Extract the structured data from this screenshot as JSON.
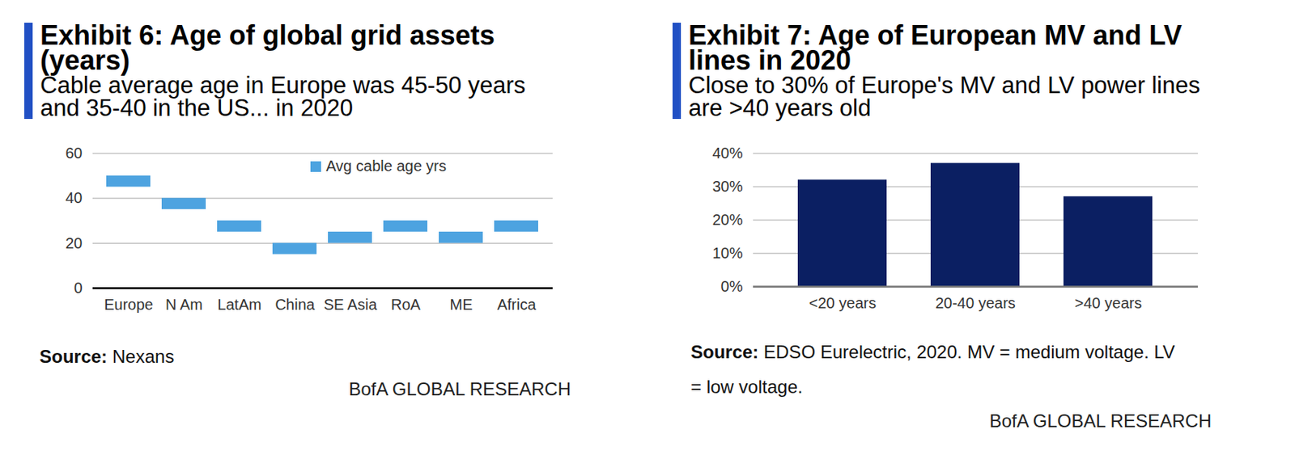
{
  "chart_data": [
    {
      "type": "range_bar",
      "title": "Exhibit 6: Age of global grid assets (years)",
      "subtitle": "Cable average age in Europe was 45-50 years and 35-40 in the US... in 2020",
      "categories": [
        "Europe",
        "N Am",
        "LatAm",
        "China",
        "SE Asia",
        "RoA",
        "ME",
        "Africa"
      ],
      "series": [
        {
          "name": "Avg cable age yrs",
          "color": "#4da3e0",
          "values": [
            [
              45,
              50
            ],
            [
              35,
              40
            ],
            [
              25,
              30
            ],
            [
              15,
              20
            ],
            [
              20,
              25
            ],
            [
              25,
              30
            ],
            [
              20,
              25
            ],
            [
              25,
              30
            ]
          ]
        }
      ],
      "ylim": [
        0,
        60
      ],
      "yticks": [
        0,
        20,
        40,
        60
      ],
      "grid": true,
      "legend": "top-right",
      "source_label": "Source:",
      "source": "Nexans",
      "credit": "BofA GLOBAL RESEARCH"
    },
    {
      "type": "bar",
      "title": "Exhibit 7: Age of European MV and LV lines in 2020",
      "subtitle": "Close to 30% of Europe's MV and LV power lines are >40 years old",
      "categories": [
        "<20 years",
        "20-40 years",
        ">40 years"
      ],
      "values": [
        32,
        37,
        27
      ],
      "color": "#0b1f62",
      "ylim": [
        0,
        40
      ],
      "yticks": [
        {
          "value": 0,
          "label": "0%"
        },
        {
          "value": 10,
          "label": "10%"
        },
        {
          "value": 20,
          "label": "20%"
        },
        {
          "value": 30,
          "label": "30%"
        },
        {
          "value": 40,
          "label": "40%"
        }
      ],
      "grid": true,
      "source_label": "Source:",
      "source": "EDSO Eurelectric, 2020. MV = medium voltage. LV = low voltage.",
      "credit": "BofA GLOBAL RESEARCH"
    }
  ]
}
